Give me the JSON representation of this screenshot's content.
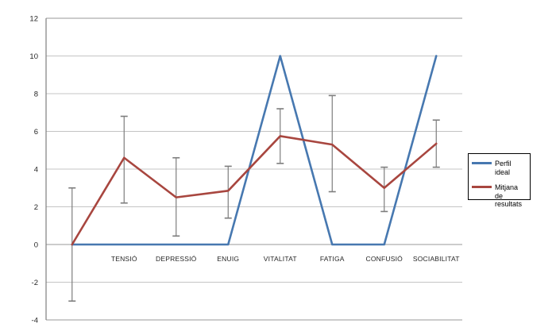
{
  "chart_data": {
    "type": "line",
    "title": "",
    "xlabel": "",
    "ylabel": "",
    "categories": [
      "",
      "TENSIÓ",
      "DEPRESSIÓ",
      "ENUIG",
      "VITALITAT",
      "FATIGA",
      "CONFUSIÓ",
      "SOCIABILITAT"
    ],
    "series": [
      {
        "name": "Perfil ideal",
        "color": "#4778B0",
        "values": [
          0,
          0,
          0,
          0,
          10,
          0,
          0,
          10
        ]
      },
      {
        "name": "Mitjana de resultats",
        "color": "#A8463F",
        "values": [
          0,
          4.6,
          2.5,
          2.85,
          5.75,
          5.3,
          3.0,
          5.35
        ],
        "error_upper": [
          3.0,
          6.8,
          4.6,
          4.15,
          7.2,
          7.9,
          4.1,
          6.6
        ],
        "error_lower": [
          -3.0,
          2.2,
          0.45,
          1.4,
          4.3,
          2.8,
          1.75,
          4.1
        ]
      }
    ],
    "ylim": [
      -4,
      12
    ],
    "yticks": [
      -4,
      -2,
      0,
      2,
      4,
      6,
      8,
      10,
      12
    ],
    "grid": true,
    "legend_position": "right"
  },
  "colors": {
    "gridline": "#C4C4C4",
    "plot_border": "#9A9A9A",
    "zero_line": "#9A9A9A",
    "y_axis": "#7F7F7F",
    "error_bar": "#7D7D7D",
    "tick_text": "#262626",
    "legend_border": "#000000"
  }
}
